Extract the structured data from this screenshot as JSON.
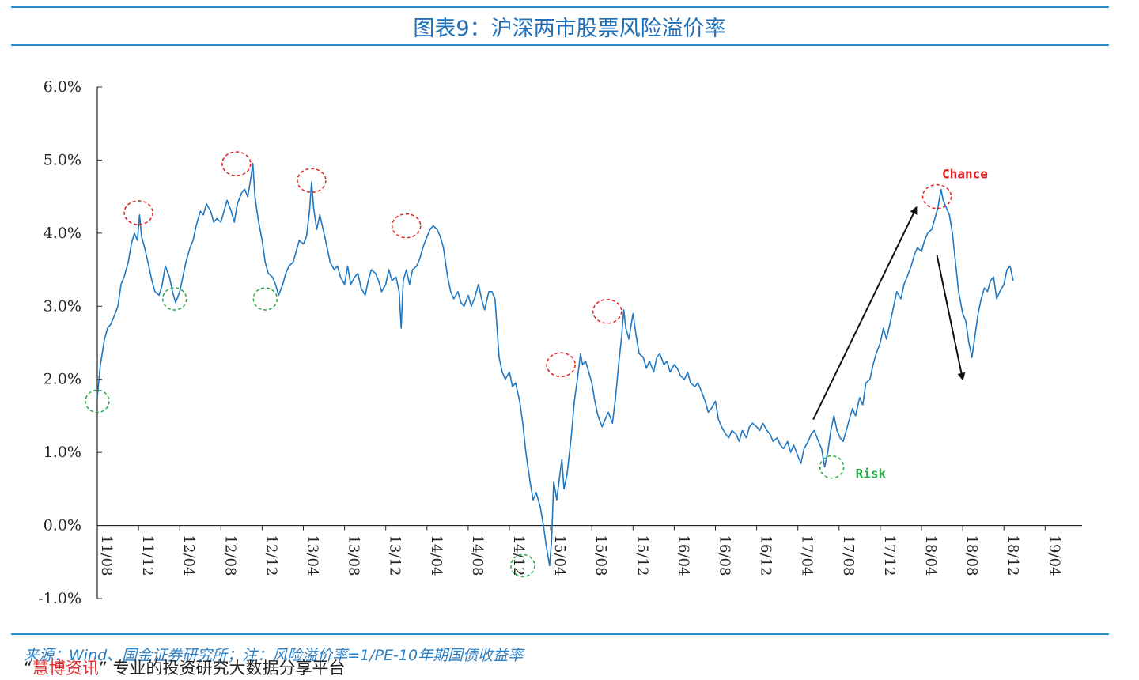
{
  "header": {
    "title": "图表9：沪深两市股票风险溢价率"
  },
  "chart_data": {
    "type": "line",
    "title": "图表9：沪深两市股票风险溢价率",
    "xlabel": "",
    "ylabel": "",
    "ylim": [
      -1.0,
      6.0
    ],
    "ytick_labels": [
      "6.0%",
      "5.0%",
      "4.0%",
      "3.0%",
      "2.0%",
      "1.0%",
      "0.0%",
      "-1.0%"
    ],
    "ytick_values": [
      6.0,
      5.0,
      4.0,
      3.0,
      2.0,
      1.0,
      0.0,
      -1.0
    ],
    "xtick_labels": [
      "11/08",
      "11/12",
      "12/04",
      "12/08",
      "12/12",
      "13/04",
      "13/08",
      "13/12",
      "14/04",
      "14/08",
      "14/12",
      "15/04",
      "15/08",
      "15/12",
      "16/04",
      "16/08",
      "16/12",
      "17/04",
      "17/08",
      "17/12",
      "18/04",
      "18/08",
      "18/12",
      "19/04"
    ],
    "series": [
      {
        "color": "#1f78c1",
        "points": [
          [
            0,
            1.75
          ],
          [
            0.3,
            2.2
          ],
          [
            0.7,
            2.55
          ],
          [
            1,
            2.7
          ],
          [
            1.3,
            2.75
          ],
          [
            1.6,
            2.85
          ],
          [
            2,
            3.0
          ],
          [
            2.3,
            3.3
          ],
          [
            2.6,
            3.4
          ],
          [
            3,
            3.6
          ],
          [
            3.3,
            3.85
          ],
          [
            3.6,
            4.0
          ],
          [
            3.9,
            3.9
          ],
          [
            4.1,
            4.25
          ],
          [
            4.3,
            3.95
          ],
          [
            4.6,
            3.8
          ],
          [
            5,
            3.55
          ],
          [
            5.3,
            3.35
          ],
          [
            5.6,
            3.2
          ],
          [
            6,
            3.15
          ],
          [
            6.3,
            3.3
          ],
          [
            6.6,
            3.55
          ],
          [
            7,
            3.4
          ],
          [
            7.3,
            3.2
          ],
          [
            7.6,
            3.05
          ],
          [
            8,
            3.2
          ],
          [
            8.3,
            3.4
          ],
          [
            8.6,
            3.6
          ],
          [
            9,
            3.8
          ],
          [
            9.3,
            3.9
          ],
          [
            9.6,
            4.1
          ],
          [
            10,
            4.3
          ],
          [
            10.3,
            4.25
          ],
          [
            10.6,
            4.4
          ],
          [
            11,
            4.3
          ],
          [
            11.3,
            4.15
          ],
          [
            11.6,
            4.2
          ],
          [
            12,
            4.15
          ],
          [
            12.3,
            4.3
          ],
          [
            12.6,
            4.45
          ],
          [
            13,
            4.3
          ],
          [
            13.3,
            4.15
          ],
          [
            13.6,
            4.4
          ],
          [
            14,
            4.55
          ],
          [
            14.3,
            4.6
          ],
          [
            14.6,
            4.5
          ],
          [
            14.9,
            4.75
          ],
          [
            15.1,
            4.95
          ],
          [
            15.3,
            4.5
          ],
          [
            15.6,
            4.2
          ],
          [
            16,
            3.9
          ],
          [
            16.3,
            3.6
          ],
          [
            16.6,
            3.45
          ],
          [
            17,
            3.4
          ],
          [
            17.3,
            3.3
          ],
          [
            17.6,
            3.15
          ],
          [
            18,
            3.3
          ],
          [
            18.3,
            3.45
          ],
          [
            18.6,
            3.55
          ],
          [
            19,
            3.6
          ],
          [
            19.3,
            3.75
          ],
          [
            19.6,
            3.9
          ],
          [
            20,
            3.85
          ],
          [
            20.3,
            3.95
          ],
          [
            20.6,
            4.3
          ],
          [
            20.8,
            4.7
          ],
          [
            21.0,
            4.35
          ],
          [
            21.3,
            4.05
          ],
          [
            21.6,
            4.25
          ],
          [
            22,
            4.0
          ],
          [
            22.3,
            3.8
          ],
          [
            22.6,
            3.6
          ],
          [
            23,
            3.5
          ],
          [
            23.3,
            3.55
          ],
          [
            23.6,
            3.4
          ],
          [
            24,
            3.3
          ],
          [
            24.3,
            3.55
          ],
          [
            24.6,
            3.3
          ],
          [
            25,
            3.4
          ],
          [
            25.3,
            3.45
          ],
          [
            25.6,
            3.25
          ],
          [
            26,
            3.15
          ],
          [
            26.3,
            3.35
          ],
          [
            26.6,
            3.5
          ],
          [
            27,
            3.45
          ],
          [
            27.3,
            3.35
          ],
          [
            27.6,
            3.2
          ],
          [
            28,
            3.3
          ],
          [
            28.3,
            3.5
          ],
          [
            28.6,
            3.35
          ],
          [
            29,
            3.4
          ],
          [
            29.3,
            3.2
          ],
          [
            29.5,
            2.7
          ],
          [
            29.7,
            3.35
          ],
          [
            30,
            3.5
          ],
          [
            30.3,
            3.3
          ],
          [
            30.6,
            3.5
          ],
          [
            31,
            3.55
          ],
          [
            31.3,
            3.65
          ],
          [
            31.6,
            3.8
          ],
          [
            32,
            3.95
          ],
          [
            32.3,
            4.05
          ],
          [
            32.6,
            4.1
          ],
          [
            33,
            4.05
          ],
          [
            33.3,
            3.95
          ],
          [
            33.6,
            3.8
          ],
          [
            34,
            3.4
          ],
          [
            34.3,
            3.2
          ],
          [
            34.6,
            3.1
          ],
          [
            35,
            3.2
          ],
          [
            35.3,
            3.05
          ],
          [
            35.6,
            3.0
          ],
          [
            36,
            3.15
          ],
          [
            36.3,
            3.0
          ],
          [
            36.6,
            3.1
          ],
          [
            37,
            3.3
          ],
          [
            37.3,
            3.1
          ],
          [
            37.6,
            2.95
          ],
          [
            38,
            3.2
          ],
          [
            38.3,
            3.2
          ],
          [
            38.6,
            3.1
          ],
          [
            39,
            2.3
          ],
          [
            39.3,
            2.1
          ],
          [
            39.6,
            2.0
          ],
          [
            40,
            2.1
          ],
          [
            40.3,
            1.9
          ],
          [
            40.6,
            1.95
          ],
          [
            41,
            1.7
          ],
          [
            41.3,
            1.4
          ],
          [
            41.6,
            1.0
          ],
          [
            42,
            0.6
          ],
          [
            42.3,
            0.35
          ],
          [
            42.6,
            0.45
          ],
          [
            43,
            0.25
          ],
          [
            43.3,
            0.0
          ],
          [
            43.6,
            -0.3
          ],
          [
            43.9,
            -0.55
          ],
          [
            44.1,
            -0.2
          ],
          [
            44.3,
            0.6
          ],
          [
            44.6,
            0.35
          ],
          [
            44.9,
            0.7
          ],
          [
            45.1,
            0.9
          ],
          [
            45.3,
            0.5
          ],
          [
            45.6,
            0.7
          ],
          [
            46,
            1.2
          ],
          [
            46.3,
            1.7
          ],
          [
            46.6,
            2.0
          ],
          [
            46.9,
            2.35
          ],
          [
            47.1,
            2.2
          ],
          [
            47.4,
            2.25
          ],
          [
            47.7,
            2.1
          ],
          [
            48,
            1.95
          ],
          [
            48.3,
            1.7
          ],
          [
            48.6,
            1.5
          ],
          [
            49,
            1.35
          ],
          [
            49.3,
            1.45
          ],
          [
            49.6,
            1.55
          ],
          [
            50,
            1.4
          ],
          [
            50.3,
            1.75
          ],
          [
            50.6,
            2.2
          ],
          [
            50.9,
            2.6
          ],
          [
            51.1,
            2.95
          ],
          [
            51.3,
            2.7
          ],
          [
            51.6,
            2.55
          ],
          [
            52,
            2.9
          ],
          [
            52.3,
            2.6
          ],
          [
            52.6,
            2.35
          ],
          [
            53,
            2.3
          ],
          [
            53.3,
            2.15
          ],
          [
            53.6,
            2.25
          ],
          [
            54,
            2.1
          ],
          [
            54.3,
            2.3
          ],
          [
            54.6,
            2.35
          ],
          [
            55,
            2.2
          ],
          [
            55.3,
            2.25
          ],
          [
            55.6,
            2.1
          ],
          [
            56,
            2.2
          ],
          [
            56.3,
            2.15
          ],
          [
            56.6,
            2.05
          ],
          [
            57,
            2.0
          ],
          [
            57.3,
            2.1
          ],
          [
            57.6,
            1.95
          ],
          [
            58,
            1.9
          ],
          [
            58.3,
            1.95
          ],
          [
            58.6,
            1.85
          ],
          [
            59,
            1.7
          ],
          [
            59.3,
            1.55
          ],
          [
            59.6,
            1.6
          ],
          [
            60,
            1.7
          ],
          [
            60.3,
            1.45
          ],
          [
            60.6,
            1.35
          ],
          [
            61,
            1.25
          ],
          [
            61.3,
            1.2
          ],
          [
            61.6,
            1.3
          ],
          [
            62,
            1.25
          ],
          [
            62.3,
            1.15
          ],
          [
            62.6,
            1.3
          ],
          [
            63,
            1.2
          ],
          [
            63.3,
            1.35
          ],
          [
            63.6,
            1.4
          ],
          [
            64,
            1.35
          ],
          [
            64.3,
            1.3
          ],
          [
            64.6,
            1.4
          ],
          [
            65,
            1.3
          ],
          [
            65.3,
            1.25
          ],
          [
            65.6,
            1.15
          ],
          [
            66,
            1.2
          ],
          [
            66.3,
            1.1
          ],
          [
            66.6,
            1.05
          ],
          [
            67,
            1.15
          ],
          [
            67.3,
            1.0
          ],
          [
            67.6,
            1.1
          ],
          [
            68,
            0.95
          ],
          [
            68.3,
            0.85
          ],
          [
            68.6,
            1.05
          ],
          [
            69,
            1.15
          ],
          [
            69.3,
            1.25
          ],
          [
            69.6,
            1.3
          ],
          [
            70,
            1.15
          ],
          [
            70.3,
            1.05
          ],
          [
            70.6,
            0.8
          ],
          [
            70.9,
            1.0
          ],
          [
            71.2,
            1.3
          ],
          [
            71.5,
            1.5
          ],
          [
            71.8,
            1.3
          ],
          [
            72.1,
            1.2
          ],
          [
            72.4,
            1.15
          ],
          [
            72.7,
            1.3
          ],
          [
            73,
            1.45
          ],
          [
            73.3,
            1.6
          ],
          [
            73.6,
            1.5
          ],
          [
            74,
            1.75
          ],
          [
            74.3,
            1.65
          ],
          [
            74.6,
            1.95
          ],
          [
            75,
            2.0
          ],
          [
            75.3,
            2.2
          ],
          [
            75.6,
            2.35
          ],
          [
            76,
            2.5
          ],
          [
            76.3,
            2.7
          ],
          [
            76.6,
            2.55
          ],
          [
            77,
            2.8
          ],
          [
            77.3,
            3.0
          ],
          [
            77.6,
            3.2
          ],
          [
            78,
            3.1
          ],
          [
            78.3,
            3.3
          ],
          [
            78.6,
            3.4
          ],
          [
            79,
            3.55
          ],
          [
            79.3,
            3.7
          ],
          [
            79.6,
            3.8
          ],
          [
            80,
            3.75
          ],
          [
            80.3,
            3.9
          ],
          [
            80.6,
            4.0
          ],
          [
            81,
            4.05
          ],
          [
            81.3,
            4.2
          ],
          [
            81.6,
            4.35
          ],
          [
            81.9,
            4.6
          ],
          [
            82.1,
            4.45
          ],
          [
            82.4,
            4.35
          ],
          [
            82.7,
            4.25
          ],
          [
            83,
            4.0
          ],
          [
            83.3,
            3.6
          ],
          [
            83.6,
            3.2
          ],
          [
            84,
            2.9
          ],
          [
            84.3,
            2.8
          ],
          [
            84.6,
            2.5
          ],
          [
            84.9,
            2.3
          ],
          [
            85.2,
            2.6
          ],
          [
            85.5,
            2.9
          ],
          [
            85.8,
            3.1
          ],
          [
            86.1,
            3.25
          ],
          [
            86.4,
            3.2
          ],
          [
            86.7,
            3.35
          ],
          [
            87,
            3.4
          ],
          [
            87.3,
            3.1
          ],
          [
            87.6,
            3.2
          ],
          [
            88,
            3.3
          ],
          [
            88.3,
            3.5
          ],
          [
            88.6,
            3.55
          ],
          [
            88.9,
            3.35
          ]
        ]
      }
    ],
    "annotations": [
      {
        "text": "Chance",
        "color": "#e02020",
        "x": 82.0,
        "y": 4.75
      },
      {
        "text": "Risk",
        "color": "#27a844",
        "x": 73.6,
        "y": 0.65
      }
    ],
    "marked_peaks": [
      [
        4.0,
        4.28
      ],
      [
        13.5,
        4.95
      ],
      [
        20.8,
        4.72
      ],
      [
        30.0,
        4.1
      ],
      [
        45.0,
        2.2
      ],
      [
        49.5,
        2.93
      ],
      [
        81.5,
        4.5
      ]
    ],
    "marked_troughs": [
      [
        0,
        1.7
      ],
      [
        7.5,
        3.1
      ],
      [
        16.3,
        3.1
      ],
      [
        41.3,
        -0.55
      ],
      [
        71.3,
        0.8
      ]
    ],
    "trend_arrows": [
      {
        "from": [
          69.5,
          1.45
        ],
        "to": [
          79.5,
          4.35
        ]
      },
      {
        "from": [
          81.5,
          3.7
        ],
        "to": [
          84.0,
          2.0
        ]
      }
    ]
  },
  "footer": {
    "source": "来源：Wind、国金证券研究所；注：风险溢价率=1/PE-10年期国债收益率",
    "watermark_brand": "慧博资讯",
    "watermark_text": "专业的投资研究大数据分享平台"
  }
}
